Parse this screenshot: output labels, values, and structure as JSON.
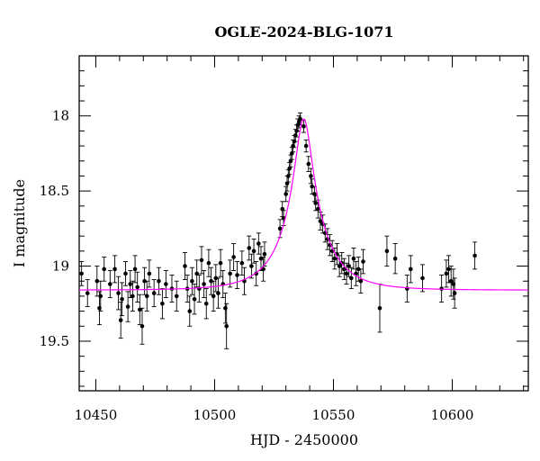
{
  "chart_data": {
    "type": "scatter",
    "title": "OGLE-2024-BLG-1071",
    "xlabel": "HJD - 2450000",
    "ylabel": "I magnitude",
    "xlim": [
      10443,
      10632
    ],
    "ylim": [
      19.83,
      17.6
    ],
    "y_inverted": true,
    "grid": false,
    "x_ticks": [
      10450,
      10500,
      10550,
      10600
    ],
    "y_ticks": [
      18,
      18.5,
      19,
      19.5
    ],
    "x_minor_step": 10,
    "y_minor_step": 0.1,
    "model": {
      "baseline": 19.16,
      "peak_mag": 18.02,
      "t0": 10537.5,
      "tE": 18,
      "u0": 0.19,
      "color": "#ff00ff"
    },
    "colors": {
      "points": "#000000",
      "model": "#ff00ff",
      "frame": "#000000"
    },
    "points": [
      [
        10444.0,
        19.05,
        0.08
      ],
      [
        10446.5,
        19.18,
        0.09
      ],
      [
        10450.5,
        19.1,
        0.1
      ],
      [
        10451.5,
        19.28,
        0.11
      ],
      [
        10452.0,
        19.2,
        0.1
      ],
      [
        10453.5,
        19.02,
        0.08
      ],
      [
        10456.0,
        19.12,
        0.09
      ],
      [
        10458.0,
        19.02,
        0.09
      ],
      [
        10459.5,
        19.18,
        0.11
      ],
      [
        10460.5,
        19.36,
        0.12
      ],
      [
        10461.0,
        19.22,
        0.11
      ],
      [
        10462.5,
        19.05,
        0.08
      ],
      [
        10463.5,
        19.27,
        0.1
      ],
      [
        10464.5,
        19.12,
        0.09
      ],
      [
        10465.5,
        19.2,
        0.1
      ],
      [
        10466.5,
        19.02,
        0.09
      ],
      [
        10467.5,
        19.14,
        0.1
      ],
      [
        10468.5,
        19.29,
        0.1
      ],
      [
        10469.5,
        19.4,
        0.12
      ],
      [
        10470.5,
        19.1,
        0.09
      ],
      [
        10471.5,
        19.2,
        0.1
      ],
      [
        10472.5,
        19.05,
        0.09
      ],
      [
        10474.5,
        19.18,
        0.09
      ],
      [
        10476.5,
        19.1,
        0.09
      ],
      [
        10478.0,
        19.25,
        0.1
      ],
      [
        10479.5,
        19.12,
        0.09
      ],
      [
        10482.0,
        19.15,
        0.09
      ],
      [
        10484.0,
        19.2,
        0.1
      ],
      [
        10487.5,
        19.0,
        0.09
      ],
      [
        10488.5,
        19.15,
        0.09
      ],
      [
        10489.5,
        19.3,
        0.1
      ],
      [
        10490.5,
        19.1,
        0.09
      ],
      [
        10491.5,
        19.22,
        0.1
      ],
      [
        10492.5,
        19.05,
        0.09
      ],
      [
        10493.5,
        19.15,
        0.09
      ],
      [
        10494.5,
        18.96,
        0.09
      ],
      [
        10495.5,
        19.12,
        0.09
      ],
      [
        10496.5,
        19.25,
        0.1
      ],
      [
        10497.5,
        18.98,
        0.09
      ],
      [
        10498.5,
        19.1,
        0.09
      ],
      [
        10499.5,
        19.2,
        0.1
      ],
      [
        10500.5,
        19.08,
        0.09
      ],
      [
        10501.5,
        19.18,
        0.1
      ],
      [
        10502.5,
        18.98,
        0.09
      ],
      [
        10503.5,
        19.12,
        0.09
      ],
      [
        10504.5,
        19.28,
        0.1
      ],
      [
        10505.0,
        19.4,
        0.15
      ],
      [
        10506.5,
        19.05,
        0.09
      ],
      [
        10508.0,
        18.94,
        0.09
      ],
      [
        10509.5,
        19.06,
        0.09
      ],
      [
        10511.5,
        18.98,
        0.08
      ],
      [
        10512.5,
        19.1,
        0.09
      ],
      [
        10514.5,
        18.88,
        0.08
      ],
      [
        10515.5,
        19.0,
        0.08
      ],
      [
        10516.5,
        18.9,
        0.08
      ],
      [
        10517.5,
        19.05,
        0.08
      ],
      [
        10518.5,
        18.85,
        0.07
      ],
      [
        10519.5,
        18.95,
        0.08
      ],
      [
        10520.5,
        19.02,
        0.08
      ],
      [
        10521.0,
        18.92,
        0.08
      ],
      [
        10527.5,
        18.75,
        0.06
      ],
      [
        10528.5,
        18.62,
        0.05
      ],
      [
        10529.0,
        18.68,
        0.05
      ],
      [
        10530.0,
        18.52,
        0.05
      ],
      [
        10530.5,
        18.45,
        0.05
      ],
      [
        10531.0,
        18.4,
        0.04
      ],
      [
        10531.5,
        18.35,
        0.04
      ],
      [
        10532.0,
        18.3,
        0.04
      ],
      [
        10532.5,
        18.25,
        0.04
      ],
      [
        10533.0,
        18.2,
        0.04
      ],
      [
        10533.5,
        18.17,
        0.04
      ],
      [
        10534.0,
        18.13,
        0.04
      ],
      [
        10534.5,
        18.1,
        0.04
      ],
      [
        10535.0,
        18.06,
        0.04
      ],
      [
        10535.5,
        18.04,
        0.04
      ],
      [
        10536.0,
        18.02,
        0.04
      ],
      [
        10537.5,
        18.07,
        0.04
      ],
      [
        10538.5,
        18.2,
        0.04
      ],
      [
        10539.5,
        18.32,
        0.05
      ],
      [
        10540.5,
        18.4,
        0.05
      ],
      [
        10541.0,
        18.47,
        0.05
      ],
      [
        10542.0,
        18.52,
        0.05
      ],
      [
        10542.5,
        18.58,
        0.05
      ],
      [
        10543.5,
        18.62,
        0.06
      ],
      [
        10544.5,
        18.7,
        0.06
      ],
      [
        10545.5,
        18.72,
        0.06
      ],
      [
        10546.5,
        18.78,
        0.06
      ],
      [
        10547.5,
        18.82,
        0.07
      ],
      [
        10548.5,
        18.86,
        0.07
      ],
      [
        10549.5,
        18.9,
        0.07
      ],
      [
        10550.5,
        18.95,
        0.07
      ],
      [
        10551.5,
        18.92,
        0.07
      ],
      [
        10552.5,
        19.0,
        0.07
      ],
      [
        10553.5,
        18.98,
        0.07
      ],
      [
        10554.5,
        19.02,
        0.07
      ],
      [
        10555.5,
        19.05,
        0.07
      ],
      [
        10556.5,
        19.0,
        0.07
      ],
      [
        10557.5,
        19.08,
        0.07
      ],
      [
        10558.5,
        18.95,
        0.07
      ],
      [
        10559.5,
        19.05,
        0.08
      ],
      [
        10560.5,
        19.02,
        0.08
      ],
      [
        10561.5,
        19.1,
        0.08
      ],
      [
        10562.5,
        18.97,
        0.08
      ],
      [
        10569.5,
        19.28,
        0.16
      ],
      [
        10572.5,
        18.9,
        0.1
      ],
      [
        10576.0,
        18.95,
        0.1
      ],
      [
        10581.0,
        19.15,
        0.09
      ],
      [
        10582.5,
        19.02,
        0.09
      ],
      [
        10587.5,
        19.08,
        0.09
      ],
      [
        10595.5,
        19.15,
        0.09
      ],
      [
        10597.5,
        19.05,
        0.09
      ],
      [
        10598.5,
        19.02,
        0.09
      ],
      [
        10599.5,
        19.1,
        0.1
      ],
      [
        10600.5,
        19.12,
        0.1
      ],
      [
        10601.0,
        19.18,
        0.1
      ],
      [
        10609.5,
        18.93,
        0.09
      ]
    ]
  }
}
